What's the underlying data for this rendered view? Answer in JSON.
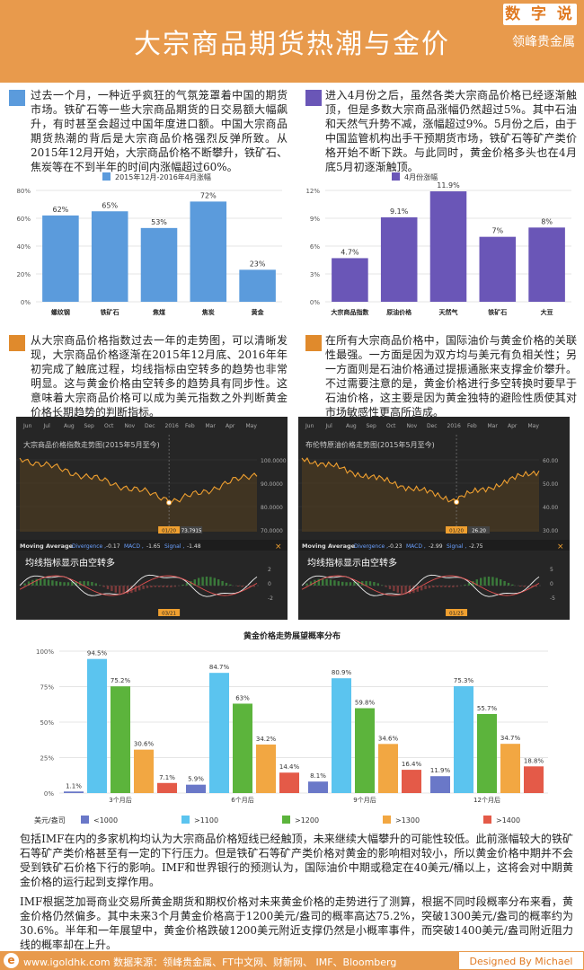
{
  "header": {
    "title": "大宗商品期货热潮与金价",
    "badge": "数 字 说",
    "brand": "领峰贵金属"
  },
  "colors": {
    "accent": "#e89a4c",
    "blue": "#5b9bdc",
    "purple": "#6a56b7",
    "orange": "#e08a2c"
  },
  "para1": "过去一个月，一种近乎疯狂的气氛笼罩着中国的期货市场。铁矿石等一些大宗商品期货的日交易额大幅飙升，有时甚至会超过中国年度进口额。中国大宗商品期货热潮的背后是大宗商品价格强烈反弹所致。从2015年12月开始，大宗商品价格不断攀升，铁矿石、焦炭等在不到半年的时间内涨幅超过60%。",
  "para2": "进入4月份之后，虽然各类大宗商品价格已经逐渐触顶，但是多数大宗商品涨幅仍然超过5%。其中石油和天然气升势不减，涨幅超过9%。5月份之后，由于中国监管机构出手干预期货市场，铁矿石等矿产类价格开始不断下跌。与此同时，黄金价格多头也在4月底5月初逐渐触顶。",
  "para3": "从大宗商品价格指数过去一年的走势图，可以清晰发现，大宗商品价格逐渐在2015年12月底、2016年年初完成了触底过程，均线指标由空转多的趋势也非常明显。这与黄金价格由空转多的趋势具有同步性。这意味着大宗商品价格可以成为美元指数之外判断黄金价格长期趋势的判断指标。",
  "para4": "在所有大宗商品价格中，国际油价与黄金价格的关联性最强。一方面是因为双方均与美元有负相关性；另一方面则是石油价格通过提振通胀来支撑金价攀升。不过需要注意的是，黄金价格进行多空转换时要早于石油价格，这主要是因为黄金独特的避险性质使其对市场敏感性更高所造成。",
  "para5": "包括IMF在内的多家机构均认为大宗商品价格短线已经触顶，未来继续大幅攀升的可能性较低。此前涨幅较大的铁矿石等矿产类价格甚至有一定的下行压力。但是铁矿石等矿产类价格对黄金的影响相对较小，所以黄金价格中期并不会受到铁矿石价格下行的影响。IMF和世界银行的预测认为，国际油价中期或稳定在40美元/桶以上，这将会对中期黄金价格的运行起到支撑作用。",
  "para6": "IMF根据芝加哥商业交易所黄金期货和期权价格对未来黄金价格的走势进行了测算，根据不同时段概率分布来看，黄金价格仍然偏多。其中未来3个月黄金价格高于1200美元/盎司的概率高达75.2%，突破1300美元/盎司的概率约为30.6%。半年和一年展望中，黄金价格跌破1200美元附近支撑仍然是小概率事件，而突破1400美元/盎司附近阻力线的概率却在上升。",
  "chart_data": [
    {
      "type": "bar",
      "title": "2015年12月-2016年4月涨幅",
      "categories": [
        "螺纹钢",
        "铁矿石",
        "焦煤",
        "焦炭",
        "黄金"
      ],
      "values": [
        62,
        65,
        53,
        72,
        23
      ],
      "value_labels": [
        "62%",
        "65%",
        "53%",
        "72%",
        "23%"
      ],
      "ylim": [
        0,
        80
      ],
      "yticks": [
        "0%",
        "20%",
        "40%",
        "60%",
        "80%"
      ],
      "color": "#5b9bdc"
    },
    {
      "type": "bar",
      "title": "4月份涨幅",
      "categories": [
        "大宗商品指数",
        "原油价格",
        "天然气",
        "铁矿石",
        "大豆"
      ],
      "values": [
        4.7,
        9.1,
        11.9,
        7,
        8
      ],
      "value_labels": [
        "4.7%",
        "9.1%",
        "11.9%",
        "7%",
        "8%"
      ],
      "ylim": [
        0,
        12
      ],
      "yticks": [
        "0%",
        "3%",
        "6%",
        "9%",
        "12%"
      ],
      "color": "#6a56b7"
    },
    {
      "type": "line",
      "title": "大宗商品价格指数走势图(2015年5月至今)",
      "months": [
        "Jun",
        "Jul",
        "Aug",
        "Sep",
        "Oct",
        "Nov",
        "Dec",
        "2016",
        "Feb",
        "Mar",
        "Apr",
        "May"
      ],
      "price_axis": [
        "100.0000",
        "90.0000",
        "80.0000",
        "70.0000"
      ],
      "low_marker": "73.7915",
      "low_date": "01/20",
      "indicator": "Moving Average",
      "divergence": "-0.17",
      "macd": "-1.65",
      "signal": "-1.48",
      "macd_axis": [
        "2",
        "0",
        "-2"
      ],
      "macd_label": "03/21",
      "annotation": "均线指标显示由空转多"
    },
    {
      "type": "line",
      "title": "布伦特原油价格走势图(2015年5月至今)",
      "months": [
        "Jun",
        "Jul",
        "Aug",
        "Sep",
        "Oct",
        "Nov",
        "Dec",
        "2016",
        "Feb",
        "Mar",
        "Apr",
        "May"
      ],
      "price_axis": [
        "60.00",
        "50.00",
        "40.00",
        "30.00"
      ],
      "low_marker": "26.20",
      "low_date": "01/20",
      "indicator": "Moving Average",
      "divergence": "-0.23",
      "macd": "-2.99",
      "signal": "-2.75",
      "macd_axis": [
        "5",
        "0",
        "-5"
      ],
      "macd_label": "01/25",
      "annotation": "均线指标显示由空转多"
    },
    {
      "type": "bar",
      "title": "黄金价格走势展望概率分布",
      "categories": [
        "3个月后",
        "6个月后",
        "9个月后",
        "12个月后"
      ],
      "series": [
        {
          "name": "<1000",
          "color": "#6a78c8",
          "values": [
            1.1,
            5.9,
            8.1,
            11.9
          ],
          "labels": [
            "1.1%",
            "5.9%",
            "8.1%",
            "11.9%"
          ]
        },
        {
          "name": ">1100",
          "color": "#5bc4ef",
          "values": [
            94.5,
            84.7,
            80.9,
            75.3
          ],
          "labels": [
            "94.5%",
            "84.7%",
            "80.9%",
            "75.3%"
          ]
        },
        {
          "name": ">1200",
          "color": "#5cb43c",
          "values": [
            75.2,
            63,
            59.8,
            55.7
          ],
          "labels": [
            "75.2%",
            "63%",
            "59.8%",
            "55.7%"
          ]
        },
        {
          "name": ">1300",
          "color": "#f2a742",
          "values": [
            30.6,
            34.2,
            34.6,
            34.7
          ],
          "labels": [
            "30.6%",
            "34.2%",
            "34.6%",
            "34.7%"
          ]
        },
        {
          "name": ">1400",
          "color": "#e45a48",
          "values": [
            7.1,
            14.4,
            16.4,
            18.8
          ],
          "labels": [
            "7.1%",
            "14.4%",
            "16.4%",
            "18.8%"
          ]
        }
      ],
      "ylim": [
        0,
        100
      ],
      "yticks": [
        "0%",
        "25%",
        "50%",
        "75%",
        "100%"
      ],
      "legend_title": "美元/盎司"
    }
  ],
  "footer": {
    "logo": "e",
    "source": "www.igoldhk.com 数据来源：领峰贵金属、FT中文网、财新网、 IMF、Bloomberg",
    "designer": "Designed By Michael Wang"
  }
}
